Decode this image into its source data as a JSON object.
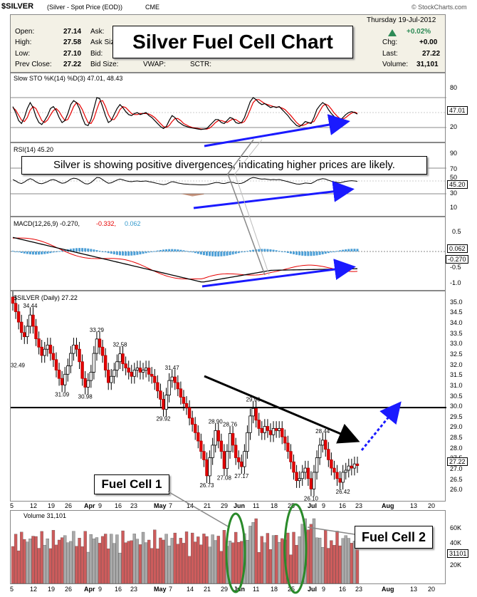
{
  "header": {
    "symbol": "$SILVER",
    "description": "(Silver - Spot Price (EOD))",
    "exchange": "CME",
    "watermark": "© StockCharts.com",
    "date": "Thursday  19-Jul-2012",
    "change_pct": "+0.02%",
    "up_color": "#2e8b57"
  },
  "quote": {
    "open_label": "Open:",
    "open": "27.14",
    "high_label": "High:",
    "high": "27.58",
    "low_label": "Low:",
    "low": "27.10",
    "prev_label": "Prev Close:",
    "prev": "27.22",
    "ask_label": "Ask:",
    "asksize_label": "Ask Size:",
    "bid_label": "Bid:",
    "bidsize_label": "Bid Size:",
    "vwap_label": "VWAP:",
    "sctr_label": "SCTR:",
    "chg_label": "Chg:",
    "chg": "+0.00",
    "last_label": "Last:",
    "last": "27.22",
    "vol_label": "Volume:",
    "vol": "31,101"
  },
  "title_box": "Silver Fuel Cell Chart",
  "annotations": {
    "divergence": "Silver is showing positive divergences, indicating higher prices are likely.",
    "fuel1": "Fuel Cell 1",
    "fuel2": "Fuel Cell 2"
  },
  "panels": {
    "sto_label": "Slow STO %K(14) %D(3) 47.01, 48.43",
    "sto_val": "47.01",
    "rsi_label": "RSI(14) 45.20",
    "rsi_val": "45.20",
    "macd_label_a": "MACD(12,26,9) -0.270,",
    "macd_label_b": "-0.332,",
    "macd_label_c": "0.062",
    "macd_hist_val": "0.062",
    "macd_val": "-0.270",
    "price_label": "$SILVER (Daily) 27.22",
    "price_val": "27.22",
    "vol_label": "Volume 31,101",
    "vol_val": "31101"
  },
  "chart_data": {
    "type": "candlestick",
    "title": "Silver Fuel Cell Chart",
    "ylim": [
      25.6,
      35.3
    ],
    "y_ticks": [
      "35.0",
      "34.5",
      "34.0",
      "33.5",
      "33.0",
      "32.5",
      "32.0",
      "31.5",
      "31.0",
      "30.5",
      "30.0",
      "29.5",
      "29.0",
      "28.5",
      "28.0",
      "27.5",
      "27.0",
      "26.5",
      "26.0"
    ],
    "x_ticks": [
      "5",
      "12",
      "19",
      "26",
      "Apr",
      "9",
      "16",
      "23",
      "May",
      "7",
      "14",
      "21",
      "29",
      "Jun",
      "11",
      "18",
      "25",
      "Jul",
      "9",
      "16",
      "23",
      "Aug",
      "13",
      "20"
    ],
    "price_labels": [
      {
        "text": "34.44",
        "value": 34.44
      },
      {
        "text": "32.49",
        "value": 32.49
      },
      {
        "text": "33.29",
        "value": 33.29
      },
      {
        "text": "32.58",
        "value": 32.58
      },
      {
        "text": "31.09",
        "value": 31.09
      },
      {
        "text": "30.98",
        "value": 30.98
      },
      {
        "text": "31.47",
        "value": 31.47
      },
      {
        "text": "29.92",
        "value": 29.92
      },
      {
        "text": "28.90",
        "value": 28.9
      },
      {
        "text": "28.76",
        "value": 28.76
      },
      {
        "text": "26.73",
        "value": 26.73
      },
      {
        "text": "27.08",
        "value": 27.08
      },
      {
        "text": "27.17",
        "value": 27.17
      },
      {
        "text": "29.96",
        "value": 29.96
      },
      {
        "text": "28.44",
        "value": 28.44
      },
      {
        "text": "26.10",
        "value": 26.1
      },
      {
        "text": "26.42",
        "value": 26.42
      }
    ],
    "close": [
      35.0,
      34.6,
      34.1,
      33.6,
      33.4,
      33.9,
      34.44,
      33.9,
      33.3,
      32.9,
      32.5,
      32.8,
      33.0,
      32.6,
      32.3,
      31.8,
      31.4,
      31.09,
      31.6,
      32.0,
      32.6,
      33.0,
      32.8,
      32.2,
      31.4,
      30.98,
      31.3,
      31.7,
      32.6,
      33.29,
      32.9,
      32.5,
      31.8,
      31.2,
      31.5,
      31.8,
      32.2,
      32.58,
      32.1,
      31.9,
      31.7,
      31.5,
      31.8,
      31.9,
      31.7,
      31.8,
      31.9,
      31.6,
      31.5,
      31.2,
      30.8,
      30.4,
      29.92,
      30.6,
      31.3,
      31.47,
      31.2,
      30.9,
      30.5,
      30.2,
      30.0,
      29.5,
      29.2,
      28.8,
      28.4,
      27.9,
      27.5,
      26.73,
      27.6,
      28.2,
      28.9,
      28.4,
      27.9,
      27.08,
      27.9,
      28.76,
      28.2,
      27.6,
      27.4,
      27.17,
      27.9,
      28.8,
      29.6,
      29.96,
      29.4,
      29.0,
      28.8,
      29.1,
      28.9,
      28.7,
      29.0,
      28.9,
      29.0,
      28.6,
      28.3,
      27.9,
      27.4,
      26.9,
      26.5,
      26.6,
      26.9,
      27.1,
      26.6,
      26.1,
      26.9,
      27.6,
      28.2,
      28.44,
      28.0,
      27.5,
      27.1,
      26.9,
      26.6,
      26.42,
      26.9,
      27.0,
      27.2,
      27.1,
      27.3,
      27.22
    ],
    "sto_ylim": [
      0,
      100
    ],
    "sto_k": [
      62,
      50,
      34,
      28,
      40,
      58,
      70,
      60,
      42,
      30,
      26,
      34,
      44,
      58,
      62,
      54,
      40,
      30,
      34,
      48,
      66,
      74,
      70,
      58,
      40,
      26,
      24,
      36,
      58,
      80,
      78,
      62,
      44,
      30,
      34,
      46,
      58,
      66,
      60,
      52,
      46,
      44,
      48,
      50,
      46,
      48,
      50,
      44,
      40,
      34,
      28,
      22,
      18,
      22,
      34,
      44,
      40,
      32,
      28,
      24,
      22,
      20,
      19,
      18,
      17,
      16,
      17,
      18,
      24,
      30,
      36,
      36,
      30,
      28,
      34,
      40,
      38,
      30,
      28,
      30,
      40,
      56,
      72,
      80,
      76,
      70,
      66,
      68,
      64,
      60,
      62,
      60,
      62,
      56,
      50,
      44,
      36,
      30,
      24,
      22,
      26,
      32,
      30,
      28,
      40,
      56,
      64,
      70,
      66,
      56,
      48,
      42,
      38,
      34,
      40,
      46,
      50,
      52,
      50,
      47
    ],
    "sto_d": [
      60,
      55,
      45,
      35,
      32,
      40,
      55,
      62,
      58,
      46,
      34,
      30,
      35,
      45,
      54,
      58,
      52,
      42,
      34,
      36,
      48,
      62,
      70,
      66,
      56,
      42,
      30,
      28,
      38,
      56,
      72,
      74,
      62,
      46,
      36,
      36,
      44,
      56,
      62,
      60,
      54,
      48,
      46,
      46,
      48,
      48,
      48,
      47,
      44,
      40,
      34,
      28,
      22,
      20,
      24,
      32,
      38,
      38,
      34,
      28,
      25,
      22,
      20,
      19,
      18,
      17,
      17,
      17,
      19,
      24,
      30,
      34,
      34,
      32,
      30,
      34,
      37,
      36,
      32,
      29,
      32,
      42,
      56,
      70,
      76,
      76,
      72,
      68,
      66,
      64,
      62,
      61,
      61,
      59,
      56,
      50,
      44,
      37,
      30,
      25,
      24,
      26,
      29,
      30,
      32,
      42,
      53,
      63,
      67,
      64,
      57,
      49,
      43,
      38,
      37,
      40,
      45,
      49,
      51,
      48.43
    ]
  }
}
